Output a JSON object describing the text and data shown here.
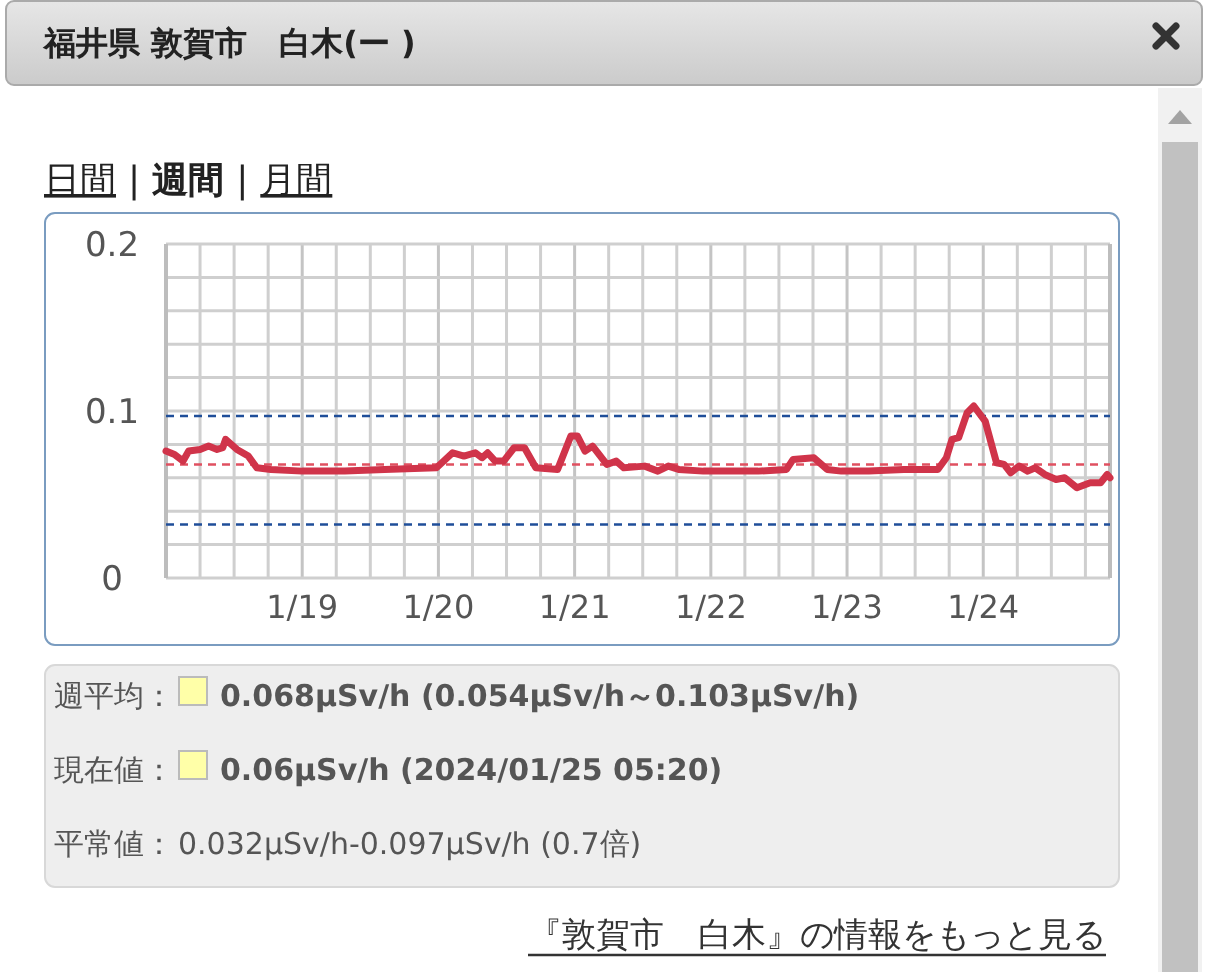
{
  "chart_data": {
    "type": "line",
    "title": "福井県 敦賀市　白木(ー )",
    "x": [
      "2024-01-18T00:00",
      "2024-01-18T01:30",
      "2024-01-18T03:00",
      "2024-01-18T04:00",
      "2024-01-18T06:00",
      "2024-01-18T07:30",
      "2024-01-18T09:00",
      "2024-01-18T10:00",
      "2024-01-18T10:30",
      "2024-01-18T12:30",
      "2024-01-18T14:30",
      "2024-01-18T16:00",
      "2024-01-18T18:30",
      "2024-01-19T00:00",
      "2024-01-19T07:30",
      "2024-01-19T14:30",
      "2024-01-19T23:40",
      "2024-01-20T02:30",
      "2024-01-20T04:30",
      "2024-01-20T06:30",
      "2024-01-20T07:40",
      "2024-01-20T08:40",
      "2024-01-20T10:00",
      "2024-01-20T11:30",
      "2024-01-20T13:20",
      "2024-01-20T15:10",
      "2024-01-20T17:10",
      "2024-01-20T21:00",
      "2024-01-20T23:20",
      "2024-01-21T00:30",
      "2024-01-21T01:50",
      "2024-01-21T03:10",
      "2024-01-21T05:40",
      "2024-01-21T07:20",
      "2024-01-21T08:40",
      "2024-01-21T12:20",
      "2024-01-21T14:40",
      "2024-01-21T16:30",
      "2024-01-21T18:20",
      "2024-01-21T22:40",
      "2024-01-22T03:30",
      "2024-01-22T08:20",
      "2024-01-22T13:20",
      "2024-01-22T14:30",
      "2024-01-22T18:10",
      "2024-01-22T20:30",
      "2024-01-22T23:00",
      "2024-01-23T03:50",
      "2024-01-23T10:00",
      "2024-01-23T16:00",
      "2024-01-23T17:30",
      "2024-01-23T18:30",
      "2024-01-23T19:40",
      "2024-01-23T21:10",
      "2024-01-23T22:20",
      "2024-01-24T00:20",
      "2024-01-24T02:20",
      "2024-01-24T03:40",
      "2024-01-24T04:50",
      "2024-01-24T06:20",
      "2024-01-24T07:50",
      "2024-01-24T09:10",
      "2024-01-24T10:50",
      "2024-01-24T12:50",
      "2024-01-24T14:20",
      "2024-01-24T16:30",
      "2024-01-24T18:50",
      "2024-01-24T20:40",
      "2024-01-24T21:50",
      "2024-01-24T22:20"
    ],
    "series": [
      {
        "color": "#d0344a",
        "values": [
          0.076,
          0.074,
          0.07,
          0.076,
          0.077,
          0.079,
          0.077,
          0.078,
          0.083,
          0.077,
          0.073,
          0.066,
          0.065,
          0.064,
          0.064,
          0.065,
          0.066,
          0.075,
          0.073,
          0.075,
          0.072,
          0.075,
          0.07,
          0.07,
          0.078,
          0.078,
          0.066,
          0.065,
          0.085,
          0.085,
          0.076,
          0.079,
          0.068,
          0.07,
          0.066,
          0.067,
          0.064,
          0.067,
          0.065,
          0.064,
          0.064,
          0.064,
          0.065,
          0.071,
          0.072,
          0.065,
          0.064,
          0.064,
          0.065,
          0.065,
          0.072,
          0.083,
          0.084,
          0.099,
          0.103,
          0.094,
          0.069,
          0.068,
          0.063,
          0.067,
          0.064,
          0.066,
          0.062,
          0.059,
          0.06,
          0.054,
          0.057,
          0.057,
          0.062,
          0.06
        ]
      }
    ],
    "xlim": [
      "2024-01-18T00:00",
      "2024-01-24T22:20"
    ],
    "xticks": [
      {
        "value": "2024-01-18T06:00",
        "label": null
      },
      {
        "value": "2024-01-18T12:00",
        "label": null
      },
      {
        "value": "2024-01-18T18:00",
        "label": null
      },
      {
        "value": "2024-01-19T00:00",
        "label": "1/19"
      },
      {
        "value": "2024-01-19T06:00",
        "label": null
      },
      {
        "value": "2024-01-19T12:00",
        "label": null
      },
      {
        "value": "2024-01-19T18:00",
        "label": null
      },
      {
        "value": "2024-01-20T00:00",
        "label": "1/20"
      },
      {
        "value": "2024-01-20T06:00",
        "label": null
      },
      {
        "value": "2024-01-20T12:00",
        "label": null
      },
      {
        "value": "2024-01-20T18:00",
        "label": null
      },
      {
        "value": "2024-01-21T00:00",
        "label": "1/21"
      },
      {
        "value": "2024-01-21T06:00",
        "label": null
      },
      {
        "value": "2024-01-21T12:00",
        "label": null
      },
      {
        "value": "2024-01-21T18:00",
        "label": null
      },
      {
        "value": "2024-01-22T00:00",
        "label": "1/22"
      },
      {
        "value": "2024-01-22T06:00",
        "label": null
      },
      {
        "value": "2024-01-22T12:00",
        "label": null
      },
      {
        "value": "2024-01-22T18:00",
        "label": null
      },
      {
        "value": "2024-01-23T00:00",
        "label": "1/23"
      },
      {
        "value": "2024-01-23T06:00",
        "label": null
      },
      {
        "value": "2024-01-23T12:00",
        "label": null
      },
      {
        "value": "2024-01-23T18:00",
        "label": null
      },
      {
        "value": "2024-01-24T00:00",
        "label": "1/24"
      },
      {
        "value": "2024-01-24T06:00",
        "label": null
      },
      {
        "value": "2024-01-24T12:00",
        "label": null
      },
      {
        "value": "2024-01-24T18:00",
        "label": null
      }
    ],
    "ylim": [
      0,
      0.2
    ],
    "yticks": [
      0,
      {
        "value": 0.02,
        "label": null
      },
      {
        "value": 0.04,
        "label": null
      },
      {
        "value": 0.06,
        "label": null
      },
      {
        "value": 0.08,
        "label": null
      },
      0.1,
      {
        "value": 0.12,
        "label": null
      },
      {
        "value": 0.14,
        "label": null
      },
      {
        "value": 0.16,
        "label": null
      },
      {
        "value": 0.18,
        "label": null
      },
      0.2
    ],
    "grid": true,
    "line_style": "solid",
    "ref_lines": [
      {
        "axis": "y",
        "value": 0.097,
        "color": "#1f4e99",
        "line_style": "dashed"
      },
      {
        "axis": "y",
        "value": 0.032,
        "color": "#1f4e99",
        "line_style": "dashed"
      },
      {
        "axis": "y",
        "value": 0.068,
        "color": "#e05060",
        "line_style": "dashed"
      }
    ],
    "annotations": [
      "日間",
      "|",
      "週間",
      "|",
      "月間",
      "週平均：",
      "0.068μSv/h (0.054μSv/h～0.103μSv/h)",
      "現在値：",
      "0.06μSv/h (2024/01/25 05:20)",
      "平常値：",
      "0.032μSv/h-0.097μSv/h (0.7倍)",
      "『敦賀市　白木』の情報をもっと見る"
    ]
  }
}
